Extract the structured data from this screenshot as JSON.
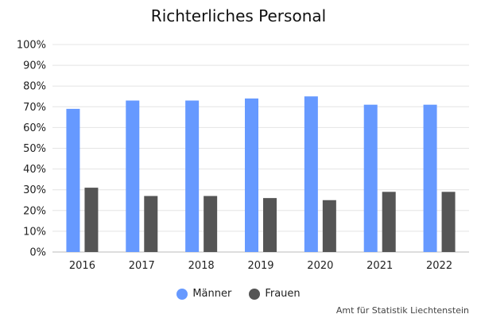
{
  "chart_data": {
    "type": "bar",
    "title": "Richterliches Personal",
    "categories": [
      "2016",
      "2017",
      "2018",
      "2019",
      "2020",
      "2021",
      "2022"
    ],
    "series": [
      {
        "name": "Männer",
        "color": "#6699ff",
        "values": [
          69,
          73,
          73,
          74,
          75,
          71,
          71
        ]
      },
      {
        "name": "Frauen",
        "color": "#555555",
        "values": [
          31,
          27,
          27,
          26,
          25,
          29,
          29
        ]
      }
    ],
    "ylim": [
      0,
      100
    ],
    "yticks": [
      "0%",
      "10%",
      "20%",
      "30%",
      "40%",
      "50%",
      "60%",
      "70%",
      "80%",
      "90%",
      "100%"
    ],
    "grid": true,
    "legend": "bottom"
  },
  "credit": "Amt für Statistik Liechtenstein"
}
